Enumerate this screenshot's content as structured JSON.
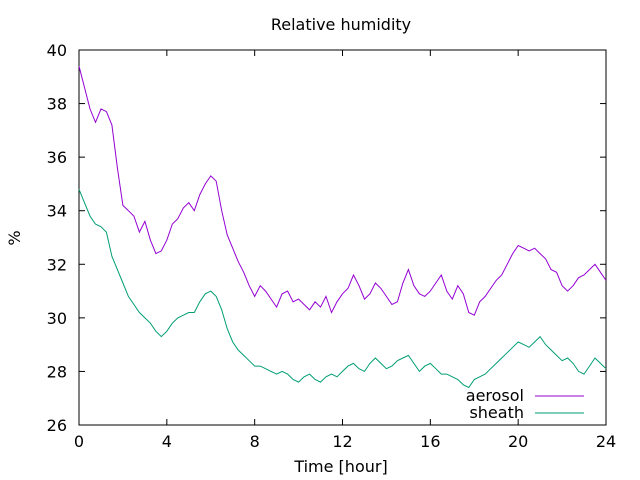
{
  "chart_data": {
    "type": "line",
    "title": "Relative humidity",
    "xlabel": "Time [hour]",
    "ylabel": "%",
    "xlim": [
      0,
      24
    ],
    "ylim": [
      26,
      40
    ],
    "x_ticks": [
      0,
      4,
      8,
      12,
      16,
      20,
      24
    ],
    "y_ticks": [
      26,
      28,
      30,
      32,
      34,
      36,
      38,
      40
    ],
    "x_tick_labels": [
      "0",
      "4",
      "8",
      "12",
      "16",
      "20",
      "24"
    ],
    "y_tick_labels": [
      "26",
      "28",
      "30",
      "32",
      "34",
      "36",
      "38",
      "40"
    ],
    "legend_position": "bottom-right",
    "grid": false,
    "series": [
      {
        "name": "aerosol",
        "color": "#9400d3",
        "points": [
          [
            0.0,
            39.4
          ],
          [
            0.25,
            38.6
          ],
          [
            0.5,
            37.8
          ],
          [
            0.75,
            37.3
          ],
          [
            1.0,
            37.8
          ],
          [
            1.25,
            37.7
          ],
          [
            1.5,
            37.2
          ],
          [
            1.75,
            35.6
          ],
          [
            2.0,
            34.2
          ],
          [
            2.25,
            34.0
          ],
          [
            2.5,
            33.8
          ],
          [
            2.75,
            33.2
          ],
          [
            3.0,
            33.6
          ],
          [
            3.25,
            32.9
          ],
          [
            3.5,
            32.4
          ],
          [
            3.75,
            32.5
          ],
          [
            4.0,
            32.9
          ],
          [
            4.25,
            33.5
          ],
          [
            4.5,
            33.7
          ],
          [
            4.75,
            34.1
          ],
          [
            5.0,
            34.3
          ],
          [
            5.25,
            34.0
          ],
          [
            5.5,
            34.6
          ],
          [
            5.75,
            35.0
          ],
          [
            6.0,
            35.3
          ],
          [
            6.25,
            35.1
          ],
          [
            6.5,
            34.0
          ],
          [
            6.75,
            33.1
          ],
          [
            7.0,
            32.6
          ],
          [
            7.25,
            32.1
          ],
          [
            7.5,
            31.7
          ],
          [
            7.75,
            31.2
          ],
          [
            8.0,
            30.8
          ],
          [
            8.25,
            31.2
          ],
          [
            8.5,
            31.0
          ],
          [
            8.75,
            30.7
          ],
          [
            9.0,
            30.4
          ],
          [
            9.25,
            30.9
          ],
          [
            9.5,
            31.0
          ],
          [
            9.75,
            30.6
          ],
          [
            10.0,
            30.7
          ],
          [
            10.25,
            30.5
          ],
          [
            10.5,
            30.3
          ],
          [
            10.75,
            30.6
          ],
          [
            11.0,
            30.4
          ],
          [
            11.25,
            30.8
          ],
          [
            11.5,
            30.2
          ],
          [
            11.75,
            30.6
          ],
          [
            12.0,
            30.9
          ],
          [
            12.25,
            31.1
          ],
          [
            12.5,
            31.6
          ],
          [
            12.75,
            31.2
          ],
          [
            13.0,
            30.7
          ],
          [
            13.25,
            30.9
          ],
          [
            13.5,
            31.3
          ],
          [
            13.75,
            31.1
          ],
          [
            14.0,
            30.8
          ],
          [
            14.25,
            30.5
          ],
          [
            14.5,
            30.6
          ],
          [
            14.75,
            31.3
          ],
          [
            15.0,
            31.8
          ],
          [
            15.25,
            31.2
          ],
          [
            15.5,
            30.9
          ],
          [
            15.75,
            30.8
          ],
          [
            16.0,
            31.0
          ],
          [
            16.25,
            31.3
          ],
          [
            16.5,
            31.6
          ],
          [
            16.75,
            31.0
          ],
          [
            17.0,
            30.7
          ],
          [
            17.25,
            31.2
          ],
          [
            17.5,
            30.9
          ],
          [
            17.75,
            30.2
          ],
          [
            18.0,
            30.1
          ],
          [
            18.25,
            30.6
          ],
          [
            18.5,
            30.8
          ],
          [
            18.75,
            31.1
          ],
          [
            19.0,
            31.4
          ],
          [
            19.25,
            31.6
          ],
          [
            19.5,
            32.0
          ],
          [
            19.75,
            32.4
          ],
          [
            20.0,
            32.7
          ],
          [
            20.25,
            32.6
          ],
          [
            20.5,
            32.5
          ],
          [
            20.75,
            32.6
          ],
          [
            21.0,
            32.4
          ],
          [
            21.25,
            32.2
          ],
          [
            21.5,
            31.8
          ],
          [
            21.75,
            31.7
          ],
          [
            22.0,
            31.2
          ],
          [
            22.25,
            31.0
          ],
          [
            22.5,
            31.2
          ],
          [
            22.75,
            31.5
          ],
          [
            23.0,
            31.6
          ],
          [
            23.25,
            31.8
          ],
          [
            23.5,
            32.0
          ],
          [
            23.75,
            31.7
          ],
          [
            24.0,
            31.4
          ]
        ]
      },
      {
        "name": "sheath",
        "color": "#009e73",
        "points": [
          [
            0.0,
            34.8
          ],
          [
            0.25,
            34.3
          ],
          [
            0.5,
            33.8
          ],
          [
            0.75,
            33.5
          ],
          [
            1.0,
            33.4
          ],
          [
            1.25,
            33.2
          ],
          [
            1.5,
            32.3
          ],
          [
            1.75,
            31.8
          ],
          [
            2.0,
            31.3
          ],
          [
            2.25,
            30.8
          ],
          [
            2.5,
            30.5
          ],
          [
            2.75,
            30.2
          ],
          [
            3.0,
            30.0
          ],
          [
            3.25,
            29.8
          ],
          [
            3.5,
            29.5
          ],
          [
            3.75,
            29.3
          ],
          [
            4.0,
            29.5
          ],
          [
            4.25,
            29.8
          ],
          [
            4.5,
            30.0
          ],
          [
            4.75,
            30.1
          ],
          [
            5.0,
            30.2
          ],
          [
            5.25,
            30.2
          ],
          [
            5.5,
            30.6
          ],
          [
            5.75,
            30.9
          ],
          [
            6.0,
            31.0
          ],
          [
            6.25,
            30.8
          ],
          [
            6.5,
            30.3
          ],
          [
            6.75,
            29.6
          ],
          [
            7.0,
            29.1
          ],
          [
            7.25,
            28.8
          ],
          [
            7.5,
            28.6
          ],
          [
            7.75,
            28.4
          ],
          [
            8.0,
            28.2
          ],
          [
            8.25,
            28.2
          ],
          [
            8.5,
            28.1
          ],
          [
            8.75,
            28.0
          ],
          [
            9.0,
            27.9
          ],
          [
            9.25,
            28.0
          ],
          [
            9.5,
            27.9
          ],
          [
            9.75,
            27.7
          ],
          [
            10.0,
            27.6
          ],
          [
            10.25,
            27.8
          ],
          [
            10.5,
            27.9
          ],
          [
            10.75,
            27.7
          ],
          [
            11.0,
            27.6
          ],
          [
            11.25,
            27.8
          ],
          [
            11.5,
            27.9
          ],
          [
            11.75,
            27.8
          ],
          [
            12.0,
            28.0
          ],
          [
            12.25,
            28.2
          ],
          [
            12.5,
            28.3
          ],
          [
            12.75,
            28.1
          ],
          [
            13.0,
            28.0
          ],
          [
            13.25,
            28.3
          ],
          [
            13.5,
            28.5
          ],
          [
            13.75,
            28.3
          ],
          [
            14.0,
            28.1
          ],
          [
            14.25,
            28.2
          ],
          [
            14.5,
            28.4
          ],
          [
            14.75,
            28.5
          ],
          [
            15.0,
            28.6
          ],
          [
            15.25,
            28.3
          ],
          [
            15.5,
            28.0
          ],
          [
            15.75,
            28.2
          ],
          [
            16.0,
            28.3
          ],
          [
            16.25,
            28.1
          ],
          [
            16.5,
            27.9
          ],
          [
            16.75,
            27.9
          ],
          [
            17.0,
            27.8
          ],
          [
            17.25,
            27.7
          ],
          [
            17.5,
            27.5
          ],
          [
            17.75,
            27.4
          ],
          [
            18.0,
            27.7
          ],
          [
            18.25,
            27.8
          ],
          [
            18.5,
            27.9
          ],
          [
            18.75,
            28.1
          ],
          [
            19.0,
            28.3
          ],
          [
            19.25,
            28.5
          ],
          [
            19.5,
            28.7
          ],
          [
            19.75,
            28.9
          ],
          [
            20.0,
            29.1
          ],
          [
            20.25,
            29.0
          ],
          [
            20.5,
            28.9
          ],
          [
            20.75,
            29.1
          ],
          [
            21.0,
            29.3
          ],
          [
            21.25,
            29.0
          ],
          [
            21.5,
            28.8
          ],
          [
            21.75,
            28.6
          ],
          [
            22.0,
            28.4
          ],
          [
            22.25,
            28.5
          ],
          [
            22.5,
            28.3
          ],
          [
            22.75,
            28.0
          ],
          [
            23.0,
            27.9
          ],
          [
            23.25,
            28.2
          ],
          [
            23.5,
            28.5
          ],
          [
            23.75,
            28.3
          ],
          [
            24.0,
            28.1
          ]
        ]
      }
    ]
  }
}
